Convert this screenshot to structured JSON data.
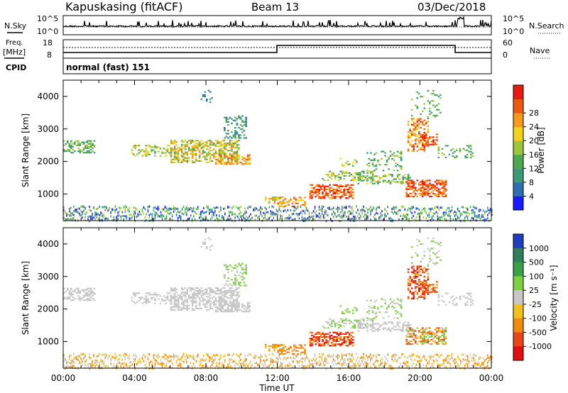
{
  "header": {
    "station": "Kapuskasing (fitACF)",
    "beam": "Beam 13",
    "date": "03/Dec/2018"
  },
  "top_panel": {
    "left_label": "N.Sky",
    "right_label": "N.Search",
    "left_ticks": [
      "10^5",
      "10^0"
    ],
    "right_ticks": [
      "10^5",
      "10^0"
    ]
  },
  "freq_panel": {
    "left_label_1": "Freq.",
    "left_label_2": "[MHz]",
    "left_ticks": [
      "18",
      "8"
    ],
    "right_label": "Nave",
    "right_ticks": [
      "60",
      "0"
    ],
    "cpid_label": "CPID",
    "cpid_value": "normal (fast) 151"
  },
  "chart_data": [
    {
      "type": "heatmap",
      "name": "power",
      "ylabel": "Slant Range [km]",
      "ylim": [
        180,
        4500
      ],
      "yticks": [
        1000,
        2000,
        3000,
        4000
      ],
      "colorbar": {
        "label": "Power [dB]",
        "ticks": [
          "4",
          "8",
          "12",
          "16",
          "20",
          "24",
          "28"
        ],
        "colors": [
          "#1a1aff",
          "#2f6fb0",
          "#3c9a78",
          "#4fa84f",
          "#9bc63a",
          "#f2d21e",
          "#f59a1e",
          "#ef5a12",
          "#e51c10"
        ],
        "range": [
          0,
          30
        ]
      }
    },
    {
      "type": "heatmap",
      "name": "velocity",
      "ylabel": "Slant Range [km]",
      "ylim": [
        180,
        4500
      ],
      "yticks": [
        1000,
        2000,
        3000,
        4000
      ],
      "xlabel": "Time UT",
      "xticks": [
        "00:00",
        "04:00",
        "08:00",
        "12:00",
        "16:00",
        "20:00",
        "00:00"
      ],
      "colorbar": {
        "label": "Velocity [m s⁻¹]",
        "ticks": [
          "1000",
          "500",
          "100",
          "25",
          "-25",
          "-100",
          "-500",
          "-1000"
        ],
        "colors": [
          "#1f3fbf",
          "#2e7f5a",
          "#3aa14a",
          "#7fd040",
          "#c8c8c8",
          "#f2c020",
          "#f08a10",
          "#e8451a",
          "#e01010"
        ]
      }
    }
  ]
}
